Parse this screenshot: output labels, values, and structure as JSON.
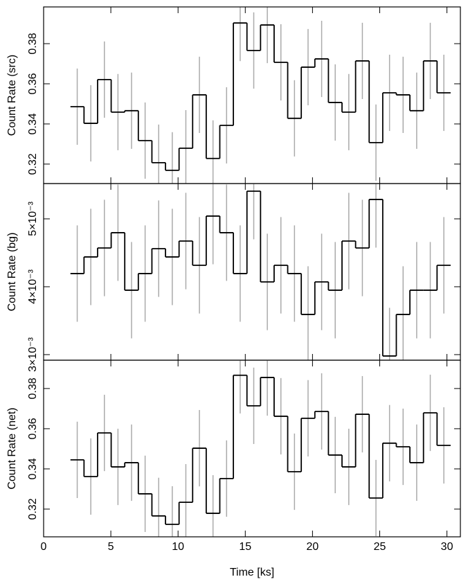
{
  "chart_data": [
    {
      "type": "step",
      "ylabel": "Count Rate (src)",
      "x": [
        2.5,
        3.51,
        4.52,
        5.53,
        6.54,
        7.55,
        8.56,
        9.57,
        10.58,
        11.59,
        12.6,
        13.61,
        14.62,
        15.63,
        16.64,
        17.65,
        18.66,
        19.67,
        20.68,
        21.69,
        22.7,
        23.71,
        24.72,
        25.73,
        26.74,
        27.75,
        28.76,
        29.77
      ],
      "values": [
        0.3486,
        0.3403,
        0.3621,
        0.3459,
        0.3466,
        0.3317,
        0.3207,
        0.3169,
        0.3279,
        0.3545,
        0.3228,
        0.3393,
        0.3903,
        0.3766,
        0.3893,
        0.3707,
        0.3428,
        0.3683,
        0.3724,
        0.3507,
        0.3459,
        0.3714,
        0.3307,
        0.3555,
        0.3545,
        0.3466,
        0.3714,
        0.3555
      ],
      "errors": [
        0.019,
        0.019,
        0.019,
        0.019,
        0.019,
        0.019,
        0.019,
        0.019,
        0.019,
        0.019,
        0.019,
        0.019,
        0.019,
        0.019,
        0.019,
        0.019,
        0.019,
        0.019,
        0.019,
        0.019,
        0.019,
        0.019,
        0.019,
        0.019,
        0.019,
        0.019,
        0.019,
        0.019
      ],
      "xlim": [
        0,
        31
      ],
      "ylim": [
        0.3103,
        0.3983
      ],
      "yticks": [
        0.32,
        0.34,
        0.36,
        0.38
      ],
      "line_color": "#000000",
      "error_color": "#aaaaaa"
    },
    {
      "type": "step",
      "ylabel": "Count Rate (bg)",
      "x": [
        2.5,
        3.51,
        4.52,
        5.53,
        6.54,
        7.55,
        8.56,
        9.57,
        10.58,
        11.59,
        12.6,
        13.61,
        14.62,
        15.63,
        16.64,
        17.65,
        18.66,
        19.67,
        20.68,
        21.69,
        22.7,
        23.71,
        24.72,
        25.73,
        26.74,
        27.75,
        28.76,
        29.77
      ],
      "values": [
        0.004194,
        0.004439,
        0.004571,
        0.004796,
        0.003949,
        0.004194,
        0.004561,
        0.004439,
        0.004673,
        0.004316,
        0.005041,
        0.004796,
        0.004194,
        0.005408,
        0.004071,
        0.004316,
        0.004194,
        0.003592,
        0.004071,
        0.003949,
        0.004673,
        0.004571,
        0.005286,
        0.00298,
        0.003592,
        0.003949,
        0.003949,
        0.004316
      ],
      "errors": [
        0.00071,
        0.00071,
        0.00071,
        0.00071,
        0.00071,
        0.00071,
        0.00071,
        0.00071,
        0.00071,
        0.00071,
        0.00071,
        0.00071,
        0.00071,
        0.00071,
        0.00071,
        0.00071,
        0.00071,
        0.00071,
        0.00071,
        0.00071,
        0.00071,
        0.00071,
        0.00071,
        0.00071,
        0.00071,
        0.00071,
        0.00071,
        0.00071
      ],
      "xlim": [
        0,
        31
      ],
      "ylim": [
        0.002918,
        0.00552
      ],
      "yticks": [
        {
          "value": 0.003,
          "label": "3×10⁻³"
        },
        {
          "value": 0.004,
          "label": "4×10⁻³"
        },
        {
          "value": 0.005,
          "label": "5×10⁻³"
        }
      ],
      "line_color": "#000000",
      "error_color": "#aaaaaa"
    },
    {
      "type": "step",
      "ylabel": "Count Rate (net)",
      "xlabel": "Time [ks]",
      "x": [
        2.5,
        3.51,
        4.52,
        5.53,
        6.54,
        7.55,
        8.56,
        9.57,
        10.58,
        11.59,
        12.6,
        13.61,
        14.62,
        15.63,
        16.64,
        17.65,
        18.66,
        19.67,
        20.68,
        21.69,
        22.7,
        23.71,
        24.72,
        25.73,
        26.74,
        27.75,
        28.76,
        29.77
      ],
      "values": [
        0.3445,
        0.3362,
        0.3579,
        0.341,
        0.3431,
        0.3276,
        0.3166,
        0.3124,
        0.3234,
        0.3503,
        0.3179,
        0.3352,
        0.3866,
        0.3714,
        0.3855,
        0.3662,
        0.3386,
        0.3652,
        0.3686,
        0.3469,
        0.341,
        0.3672,
        0.3255,
        0.3528,
        0.351,
        0.3431,
        0.3679,
        0.3517
      ],
      "errors": [
        0.019,
        0.019,
        0.019,
        0.019,
        0.019,
        0.019,
        0.019,
        0.019,
        0.019,
        0.019,
        0.019,
        0.019,
        0.019,
        0.019,
        0.019,
        0.019,
        0.019,
        0.019,
        0.019,
        0.019,
        0.019,
        0.019,
        0.019,
        0.019,
        0.019,
        0.019,
        0.019,
        0.019
      ],
      "xlim": [
        0,
        31
      ],
      "ylim": [
        0.3062,
        0.3941
      ],
      "yticks": [
        0.32,
        0.34,
        0.36,
        0.38
      ],
      "xticks": [
        0,
        5,
        10,
        15,
        20,
        25,
        30
      ],
      "line_color": "#000000",
      "error_color": "#aaaaaa"
    }
  ]
}
